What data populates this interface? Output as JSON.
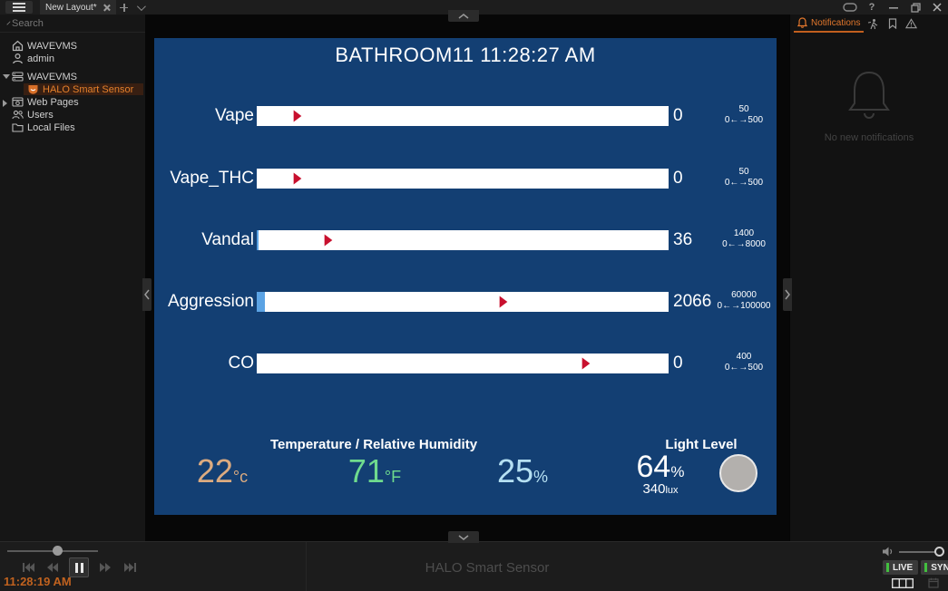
{
  "titlebar": {
    "tab_label": "New Layout*",
    "help_label": "?"
  },
  "sidebar": {
    "search_placeholder": "Search",
    "tree": {
      "site_label": "WAVEVMS",
      "user_label": "admin",
      "server_label": "WAVEVMS",
      "sensor_label": "HALO Smart Sensor",
      "webpages_label": "Web Pages",
      "users_label": "Users",
      "localfiles_label": "Local Files"
    }
  },
  "panel": {
    "title": "BATHROOM11 11:28:27 AM",
    "gauges": [
      {
        "label": "Vape",
        "value": 0,
        "max": 500,
        "threshold": 50,
        "value_label": "0",
        "threshold_label": "50",
        "range_label": "0←→500"
      },
      {
        "label": "Vape_THC",
        "value": 0,
        "max": 500,
        "threshold": 50,
        "value_label": "0",
        "threshold_label": "50",
        "range_label": "0←→500"
      },
      {
        "label": "Vandal",
        "value": 36,
        "max": 8000,
        "threshold": 1400,
        "value_label": "36",
        "threshold_label": "1400",
        "range_label": "0←→8000"
      },
      {
        "label": "Aggression",
        "value": 2066,
        "max": 100000,
        "threshold": 60000,
        "value_label": "2066",
        "threshold_label": "60000",
        "range_label": "0←→100000"
      },
      {
        "label": "CO",
        "value": 0,
        "max": 500,
        "threshold": 400,
        "value_label": "0",
        "threshold_label": "400",
        "range_label": "0←→500"
      }
    ],
    "env_header": "Temperature / Relative Humidity",
    "temp_c": "22",
    "temp_c_unit": "°c",
    "temp_f": "71",
    "temp_f_unit": "°F",
    "humidity": "25",
    "humidity_unit": "%",
    "light_header": "Light Level",
    "light_pct": "64",
    "light_pct_unit": "%",
    "light_lux": "340",
    "light_lux_unit": "lux"
  },
  "notifications_panel": {
    "tab_label": "Notifications",
    "empty_text": "No new notifications"
  },
  "bottom": {
    "camera_title": "HALO Smart Sensor",
    "timestamp": "11:28:19 AM",
    "live_label": "LIVE",
    "sync_label": "SYNC"
  },
  "colors": {
    "accent": "#e0762c",
    "panel-bg": "#133f73",
    "marker": "#c8102e",
    "bar-fill": "#5ba3e4",
    "temp-c": "#dcab80",
    "temp-f": "#6fdb8e",
    "humidity": "#b5e0f2",
    "live-green": "#43bf3f",
    "timestamp": "#c0621f"
  }
}
